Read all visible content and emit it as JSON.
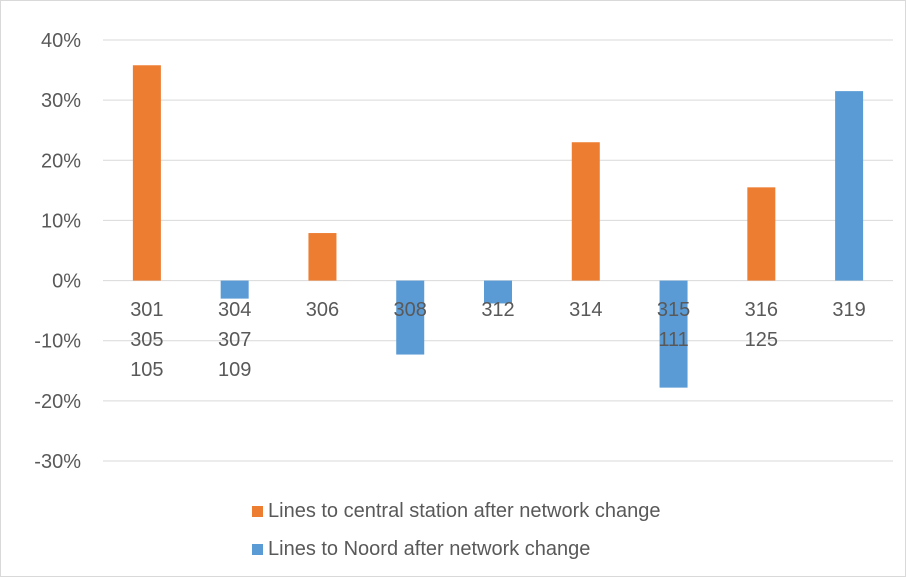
{
  "chart_data": {
    "type": "bar",
    "title": "",
    "xlabel": "",
    "ylabel": "",
    "ylim": [
      -0.3,
      0.4
    ],
    "y_ticks": [
      "40%",
      "30%",
      "20%",
      "10%",
      "0%",
      "-10%",
      "-20%",
      "-30%"
    ],
    "categories": [
      [
        "301",
        "305",
        "105"
      ],
      [
        "304",
        "307",
        "109"
      ],
      [
        "306"
      ],
      [
        "308"
      ],
      [
        "312"
      ],
      [
        "314"
      ],
      [
        "315",
        "111"
      ],
      [
        "316",
        "125"
      ],
      [
        "319"
      ]
    ],
    "bars": [
      {
        "category_index": 0,
        "series": "central",
        "value": 0.358
      },
      {
        "category_index": 1,
        "series": "noord",
        "value": -0.03
      },
      {
        "category_index": 2,
        "series": "central",
        "value": 0.079
      },
      {
        "category_index": 3,
        "series": "noord",
        "value": -0.123
      },
      {
        "category_index": 4,
        "series": "noord",
        "value": -0.038
      },
      {
        "category_index": 5,
        "series": "central",
        "value": 0.23
      },
      {
        "category_index": 6,
        "series": "noord",
        "value": -0.178
      },
      {
        "category_index": 7,
        "series": "central",
        "value": 0.155
      },
      {
        "category_index": 8,
        "series": "noord",
        "value": 0.315
      }
    ],
    "series": [
      {
        "key": "central",
        "name": "Lines to central station after network change",
        "color": "#ED7D31"
      },
      {
        "key": "noord",
        "name": "Lines to Noord after network change",
        "color": "#5B9BD5"
      }
    ],
    "grid": true,
    "legend_position": "bottom"
  }
}
